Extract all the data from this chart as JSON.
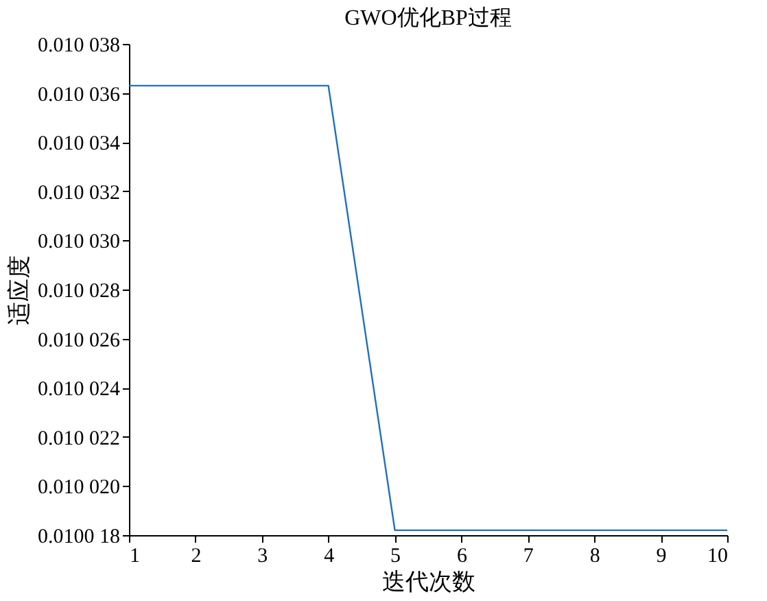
{
  "chart_data": {
    "type": "line",
    "title": "GWO优化BP过程",
    "xlabel": "迭代次数",
    "ylabel": "适应度",
    "x": [
      1,
      2,
      3,
      4,
      5,
      6,
      7,
      8,
      9,
      10
    ],
    "series": [
      {
        "color": "#1f6fc5",
        "values": [
          0.0100363,
          0.0100363,
          0.0100363,
          0.0100363,
          0.0100182,
          0.0100182,
          0.0100182,
          0.0100182,
          0.0100182,
          0.0100182
        ]
      }
    ],
    "xlim": [
      1,
      10
    ],
    "xticks": [
      1,
      2,
      3,
      4,
      5,
      6,
      7,
      8,
      9,
      10
    ],
    "ylim": [
      0.010018,
      0.010038
    ],
    "yticks": [
      {
        "value": 0.010018,
        "label": "0.0100 18"
      },
      {
        "value": 0.01002,
        "label": "0.010 020"
      },
      {
        "value": 0.010022,
        "label": "0.010 022"
      },
      {
        "value": 0.010024,
        "label": "0.010 024"
      },
      {
        "value": 0.010026,
        "label": "0.010 026"
      },
      {
        "value": 0.010028,
        "label": "0.010 028"
      },
      {
        "value": 0.01003,
        "label": "0.010 030"
      },
      {
        "value": 0.010032,
        "label": "0.010 032"
      },
      {
        "value": 0.010034,
        "label": "0.010 034"
      },
      {
        "value": 0.010036,
        "label": "0.010 036"
      },
      {
        "value": 0.010038,
        "label": "0.010 038"
      }
    ],
    "grid": false,
    "marker": "none",
    "line_style": "solid"
  }
}
